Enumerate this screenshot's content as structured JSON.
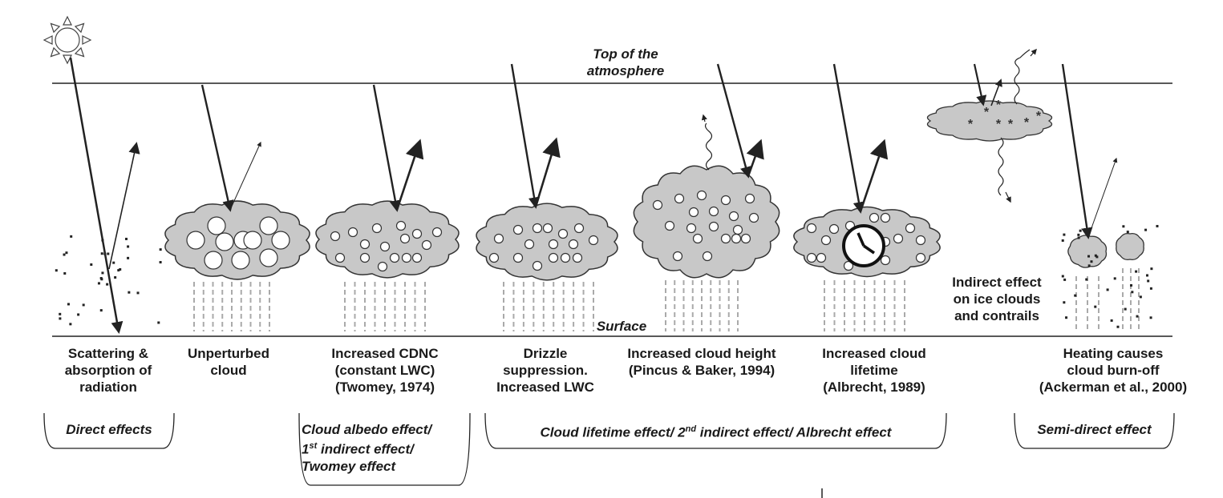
{
  "atmosphere": {
    "top_line1": "Top of the",
    "top_line2": "atmosphere",
    "surface": "Surface"
  },
  "panels": [
    {
      "id": "scattering",
      "line1": "Scattering &",
      "line2": "absorption of",
      "line3": "radiation"
    },
    {
      "id": "unperturbed",
      "line1": "Unperturbed",
      "line2": "cloud",
      "line3": ""
    },
    {
      "id": "cdnc",
      "line1": "Increased CDNC",
      "line2": "(constant LWC)",
      "line3": "(Twomey, 1974)"
    },
    {
      "id": "drizzle",
      "line1": "Drizzle",
      "line2": "suppression.",
      "line3": "Increased LWC"
    },
    {
      "id": "height",
      "line1": "Increased cloud height",
      "line2": "(Pincus & Baker, 1994)",
      "line3": ""
    },
    {
      "id": "lifetime",
      "line1": "Increased cloud",
      "line2": "lifetime",
      "line3": "(Albrecht, 1989)"
    },
    {
      "id": "burnoff",
      "line1": "Heating causes",
      "line2": "cloud  burn-off",
      "line3": "(Ackerman et al., 2000)"
    }
  ],
  "ice_label": {
    "line1": "Indirect effect",
    "line2": "on ice clouds",
    "line3": "and contrails"
  },
  "groups": {
    "direct": "Direct effects",
    "albedo_line1": "Cloud albedo effect/",
    "albedo_line2_pre": "1",
    "albedo_line2_sup": "st",
    "albedo_line2_post": " indirect effect/",
    "albedo_line3": "Twomey effect",
    "lifetime_pre": "Cloud lifetime effect/ 2",
    "lifetime_sup": "nd",
    "lifetime_post": " indirect effect/ Albrecht effect",
    "semidirect": "Semi-direct effect"
  },
  "colors": {
    "cloud_fill": "#c8c8c8",
    "cloud_stroke": "#333333",
    "line": "#222222",
    "rain": "#aaaaaa"
  }
}
